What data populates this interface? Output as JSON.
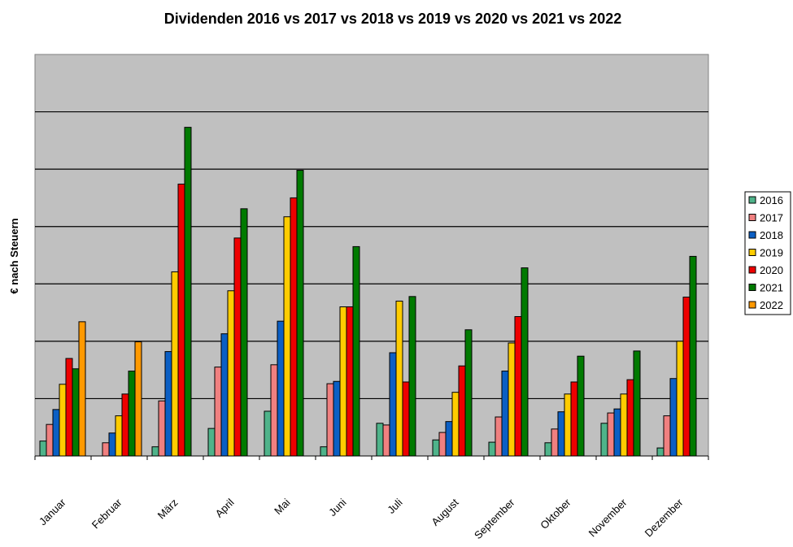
{
  "chart_data": {
    "type": "bar",
    "title": "Dividenden 2016 vs 2017 vs 2018 vs 2019 vs 2020 vs 2021 vs 2022",
    "xlabel": "",
    "ylabel": "€ nach Steuern",
    "ylim": [
      0,
      7
    ],
    "y_tick_labels_shown": false,
    "grid": true,
    "legend_placement": "right",
    "categories": [
      "Januar",
      "Februar",
      "März",
      "April",
      "Mai",
      "Juni",
      "Juli",
      "August",
      "September",
      "Oktober",
      "November",
      "Dezember"
    ],
    "series": [
      {
        "name": "2016",
        "color": "#4fb38a",
        "values": [
          0.26,
          0,
          0.16,
          0.48,
          0.78,
          0.16,
          0.57,
          0.28,
          0.24,
          0.23,
          0.57,
          0.14
        ]
      },
      {
        "name": "2017",
        "color": "#f08080",
        "values": [
          0.55,
          0.23,
          0.96,
          1.55,
          1.59,
          1.26,
          0.54,
          0.41,
          0.68,
          0.47,
          0.75,
          0.7
        ]
      },
      {
        "name": "2018",
        "color": "#0b5fc4",
        "values": [
          0.81,
          0.4,
          1.82,
          2.13,
          2.35,
          1.3,
          1.8,
          0.6,
          1.48,
          0.77,
          0.82,
          1.35
        ]
      },
      {
        "name": "2019",
        "color": "#ffcc00",
        "values": [
          1.25,
          0.7,
          3.21,
          2.88,
          4.17,
          2.6,
          2.7,
          1.11,
          1.97,
          1.08,
          1.08,
          2.0
        ]
      },
      {
        "name": "2020",
        "color": "#ee0000",
        "values": [
          1.7,
          1.08,
          4.74,
          3.8,
          4.5,
          2.6,
          1.29,
          1.57,
          2.43,
          1.29,
          1.33,
          2.77
        ]
      },
      {
        "name": "2021",
        "color": "#007a00",
        "values": [
          1.52,
          1.48,
          5.73,
          4.31,
          4.98,
          3.65,
          2.78,
          2.2,
          3.28,
          1.74,
          1.83,
          3.48
        ]
      },
      {
        "name": "2022",
        "color": "#ff9900",
        "values": [
          2.34,
          1.99,
          0,
          0,
          0,
          0,
          0,
          0,
          0,
          0,
          0,
          0
        ]
      }
    ],
    "plot_background": "#c0c0c0"
  }
}
